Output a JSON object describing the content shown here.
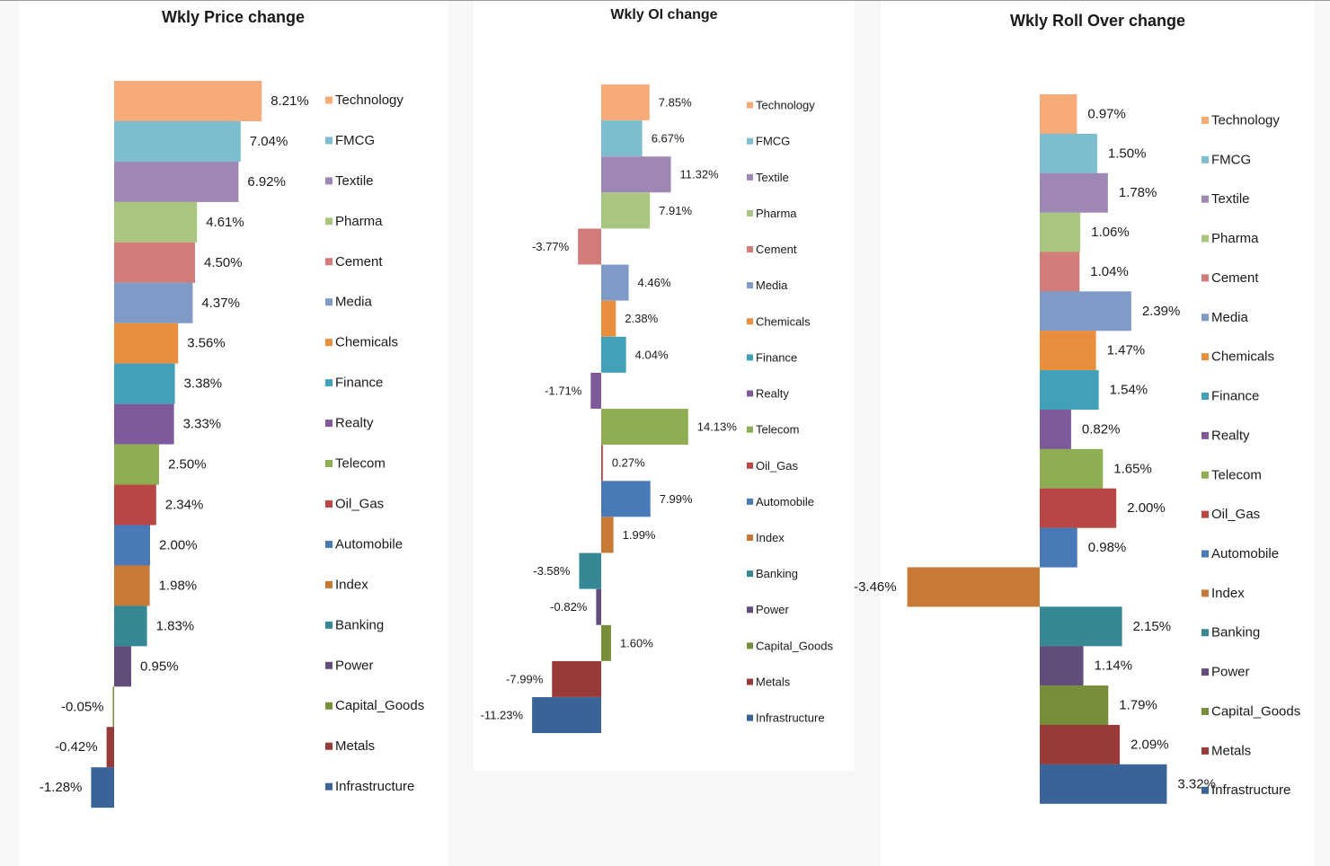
{
  "colors": {
    "Technology": "#f6ab79",
    "FMCG": "#7dbdd0",
    "Textile": "#9e87b4",
    "Pharma": "#a9c680",
    "Cement": "#d17c7a",
    "Media": "#7f9ac7",
    "Chemicals": "#e98e3d",
    "Finance": "#42a1b8",
    "Realty": "#7f5a9b",
    "Telecom": "#8fad52",
    "Oil_Gas": "#b84746",
    "Automobile": "#4a79b8",
    "Index": "#c77a36",
    "Banking": "#358894",
    "Power": "#634d7c",
    "Capital_Goods": "#778e3b",
    "Metals": "#973a38",
    "Infrastructure": "#3a6497"
  },
  "chart_data": [
    {
      "type": "bar",
      "orientation": "horizontal",
      "title": "Wkly Price change",
      "categories": [
        "Technology",
        "FMCG",
        "Textile",
        "Pharma",
        "Cement",
        "Media",
        "Chemicals",
        "Finance",
        "Realty",
        "Telecom",
        "Oil_Gas",
        "Automobile",
        "Index",
        "Banking",
        "Power",
        "Capital_Goods",
        "Metals",
        "Infrastructure"
      ],
      "values": [
        8.21,
        7.04,
        6.92,
        4.61,
        4.5,
        4.37,
        3.56,
        3.38,
        3.33,
        2.5,
        2.34,
        2.0,
        1.98,
        1.83,
        0.95,
        -0.05,
        -0.42,
        -1.28
      ],
      "labels": [
        "8.21%",
        "7.04%",
        "6.92%",
        "4.61%",
        "4.50%",
        "4.37%",
        "3.56%",
        "3.38%",
        "3.33%",
        "2.50%",
        "2.34%",
        "2.00%",
        "1.98%",
        "1.83%",
        "0.95%",
        "-0.05%",
        "-0.42%",
        "-1.28%"
      ],
      "legend": [
        "Technology",
        "FMCG",
        "Textile",
        "Pharma",
        "Cement",
        "Media",
        "Chemicals",
        "Finance",
        "Realty",
        "Telecom",
        "Oil_Gas",
        "Automobile",
        "Index",
        "Banking",
        "Power",
        "Capital_Goods",
        "Metals",
        "Infrastructure"
      ],
      "legend_position": "right"
    },
    {
      "type": "bar",
      "orientation": "horizontal",
      "title": "Wkly OI change",
      "categories": [
        "Technology",
        "FMCG",
        "Textile",
        "Pharma",
        "Cement",
        "Media",
        "Chemicals",
        "Finance",
        "Realty",
        "Telecom",
        "Oil_Gas",
        "Automobile",
        "Index",
        "Banking",
        "Power",
        "Capital_Goods",
        "Metals",
        "Infrastructure"
      ],
      "values": [
        7.85,
        6.67,
        11.32,
        7.91,
        -3.77,
        4.46,
        2.38,
        4.04,
        -1.71,
        14.13,
        0.27,
        7.99,
        1.99,
        -3.58,
        -0.82,
        1.6,
        -7.99,
        -11.23
      ],
      "labels": [
        "7.85%",
        "6.67%",
        "11.32%",
        "7.91%",
        "-3.77%",
        "4.46%",
        "2.38%",
        "4.04%",
        "-1.71%",
        "14.13%",
        "0.27%",
        "7.99%",
        "1.99%",
        "-3.58%",
        "-0.82%",
        "1.60%",
        "-7.99%",
        "-11.23%"
      ],
      "legend": [
        "Technology",
        "FMCG",
        "Textile",
        "Pharma",
        "Cement",
        "Media",
        "Chemicals",
        "Finance",
        "Realty",
        "Telecom",
        "Oil_Gas",
        "Automobile",
        "Index",
        "Banking",
        "Power",
        "Capital_Goods",
        "Metals",
        "Infrastructure"
      ],
      "legend_position": "right"
    },
    {
      "type": "bar",
      "orientation": "horizontal",
      "title": "Wkly Roll Over change",
      "categories": [
        "Technology",
        "FMCG",
        "Textile",
        "Pharma",
        "Cement",
        "Media",
        "Chemicals",
        "Finance",
        "Realty",
        "Telecom",
        "Oil_Gas",
        "Automobile",
        "Index",
        "Banking",
        "Power",
        "Capital_Goods",
        "Metals",
        "Infrastructure"
      ],
      "values": [
        0.97,
        1.5,
        1.78,
        1.06,
        1.04,
        2.39,
        1.47,
        1.54,
        0.82,
        1.65,
        2.0,
        0.98,
        -3.46,
        2.15,
        1.14,
        1.79,
        2.09,
        3.32
      ],
      "labels": [
        "0.97%",
        "1.50%",
        "1.78%",
        "1.06%",
        "1.04%",
        "2.39%",
        "1.47%",
        "1.54%",
        "0.82%",
        "1.65%",
        "2.00%",
        "0.98%",
        "-3.46%",
        "2.15%",
        "1.14%",
        "1.79%",
        "2.09%",
        "3.32%"
      ],
      "legend": [
        "Technology",
        "FMCG",
        "Textile",
        "Pharma",
        "Cement",
        "Media",
        "Chemicals",
        "Finance",
        "Realty",
        "Telecom",
        "Oil_Gas",
        "Automobile",
        "Index",
        "Banking",
        "Power",
        "Capital_Goods",
        "Metals",
        "Infrastructure"
      ],
      "legend_position": "right"
    }
  ]
}
